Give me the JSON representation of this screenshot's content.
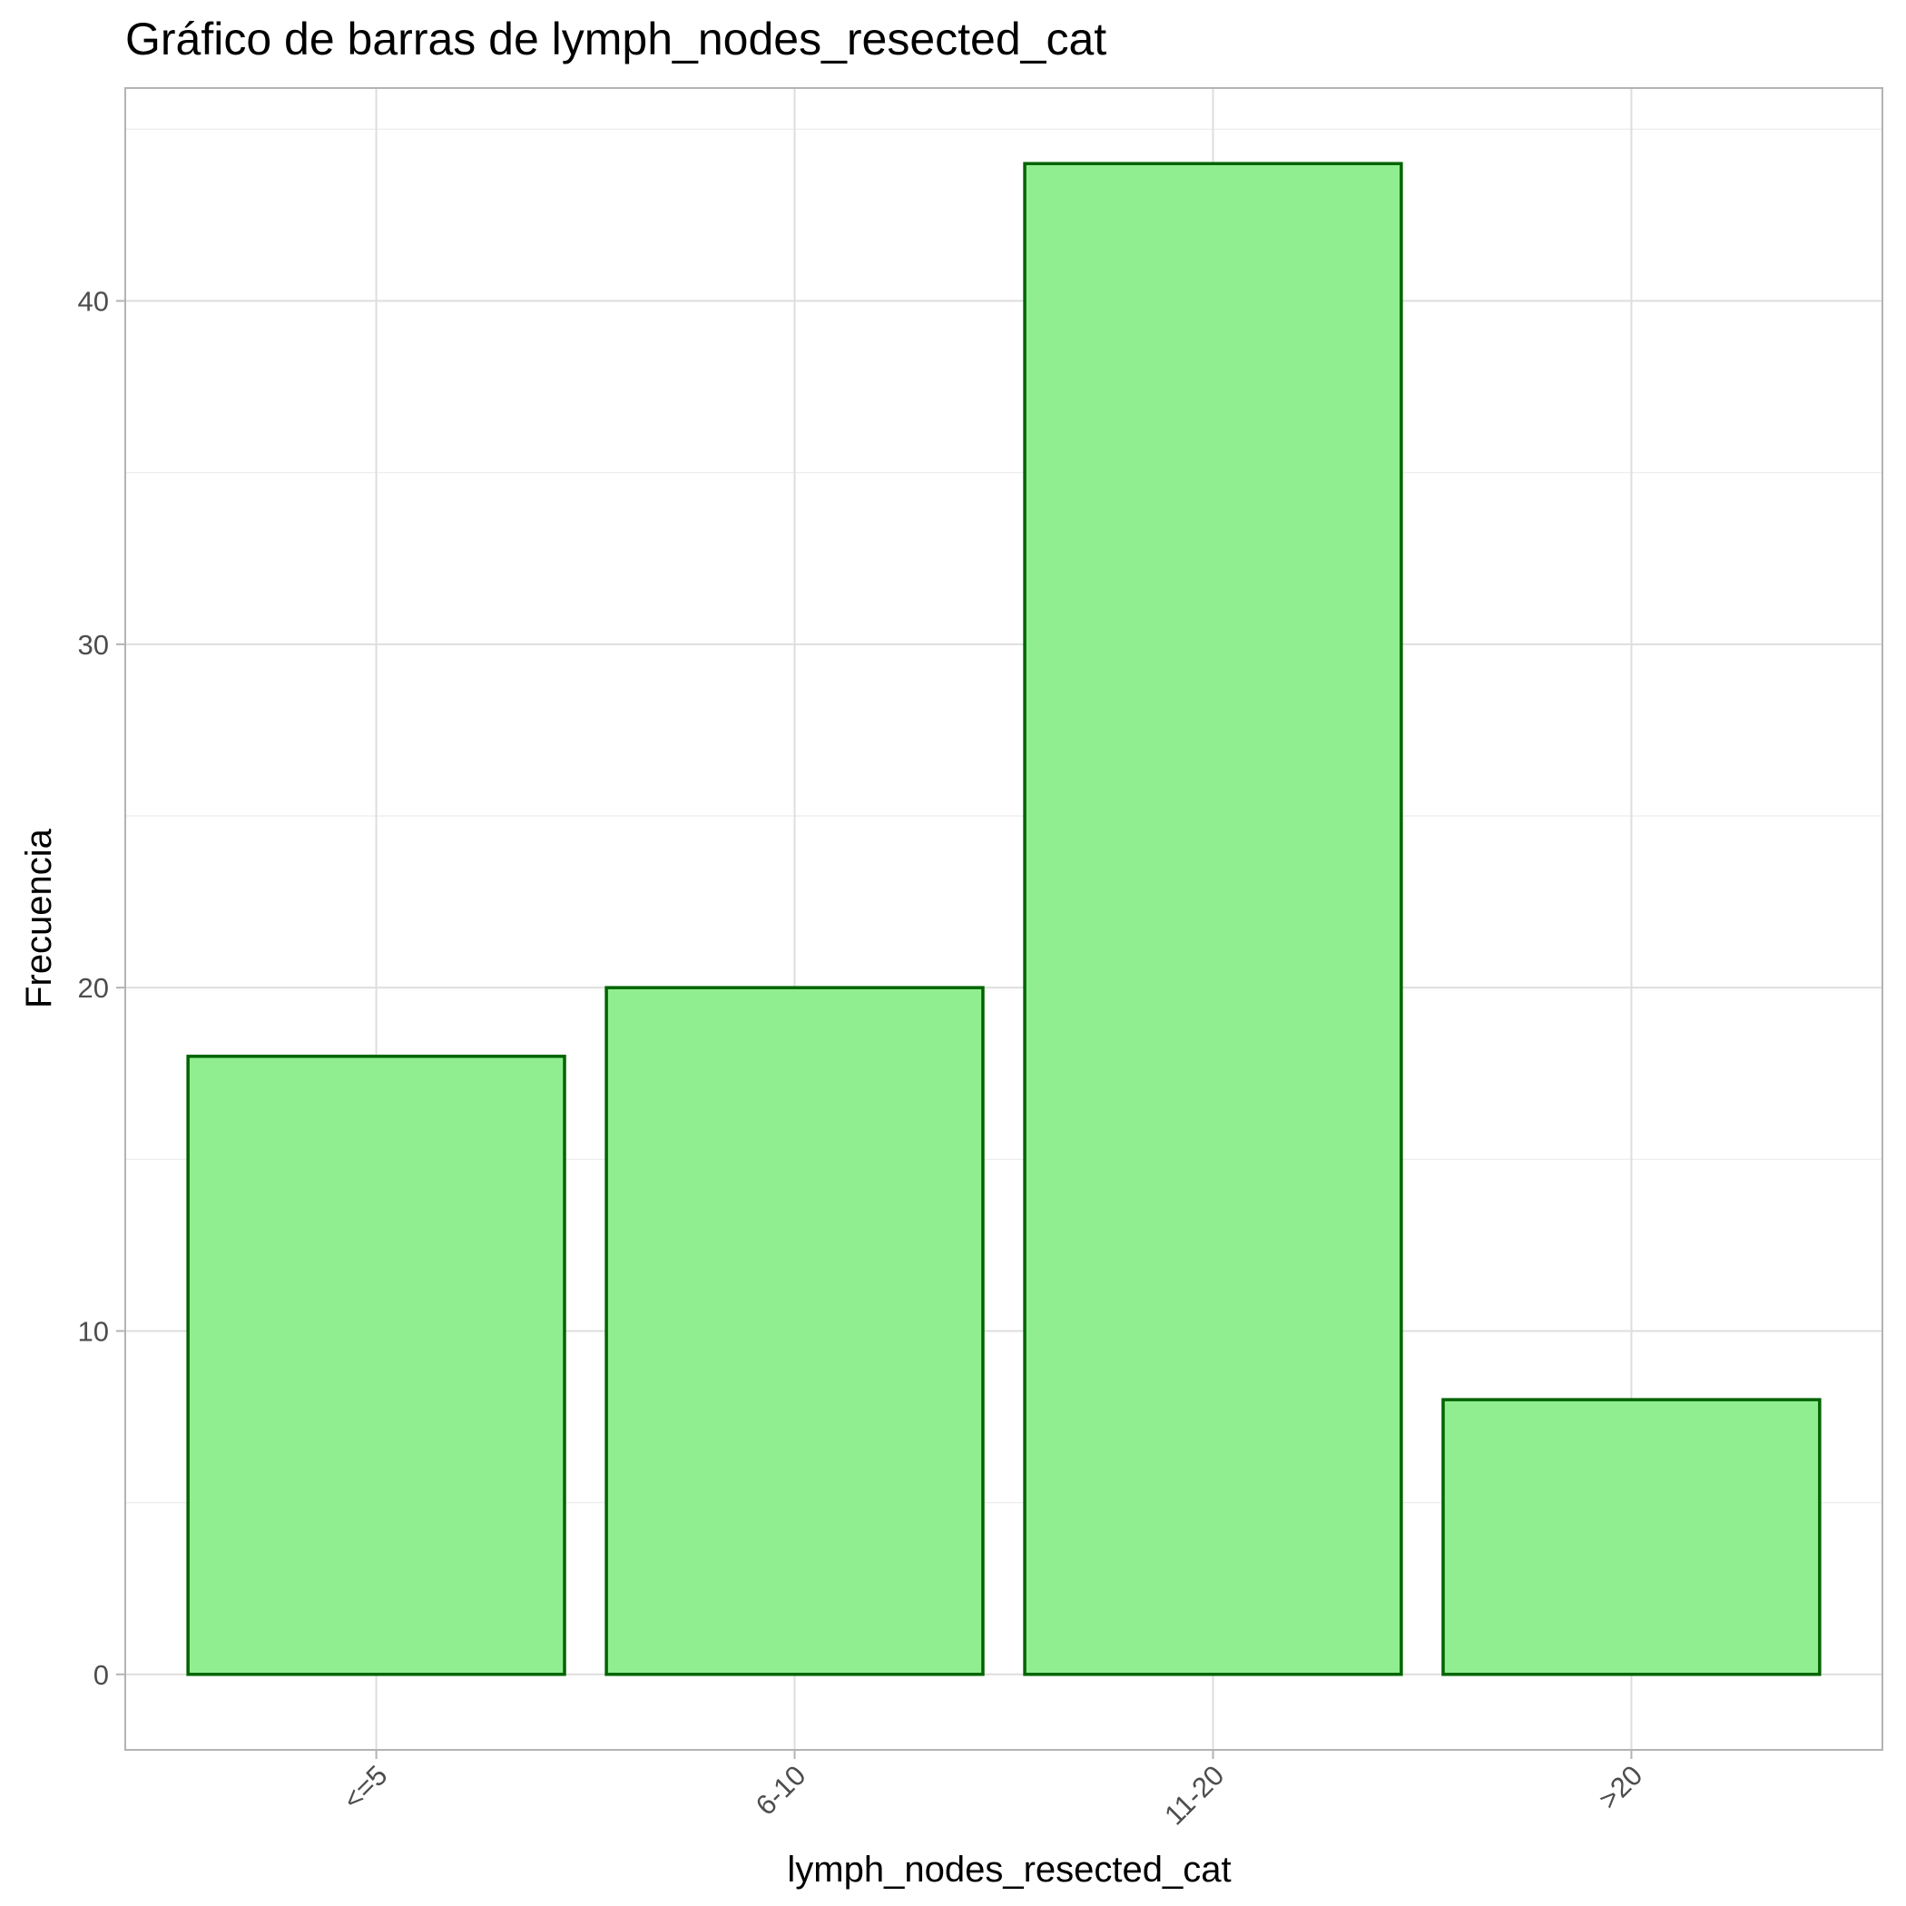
{
  "chart_data": {
    "type": "bar",
    "title": "Gráfico de barras de lymph_nodes_resected_cat",
    "xlabel": "lymph_nodes_resected_cat",
    "ylabel": "Frecuencia",
    "categories": [
      "<=5",
      "6-10",
      "11-20",
      ">20"
    ],
    "values": [
      18,
      20,
      44,
      8
    ],
    "ylim": [
      -2.2,
      46.2
    ],
    "y_ticks": [
      0,
      10,
      20,
      30,
      40
    ],
    "y_tick_labels": [
      "0",
      "10",
      "20",
      "30",
      "40"
    ],
    "y_minor_ticks": [
      5,
      15,
      25,
      35,
      45
    ],
    "grid": true,
    "legend": "none",
    "bar_fill": "#90EE90",
    "bar_stroke": "#006400",
    "x_tick_rotation": "45"
  }
}
